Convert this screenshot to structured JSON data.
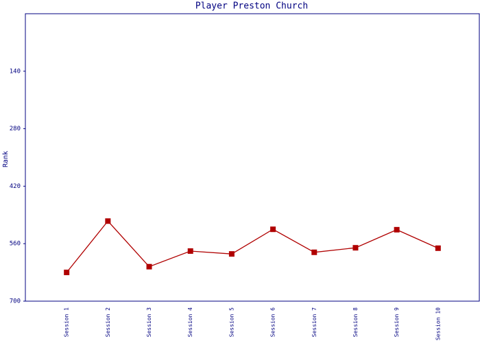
{
  "chart_data": {
    "type": "line",
    "title": "Player Preston Church",
    "y_label": "Rank",
    "categories": [
      "Session 1",
      "Session 2",
      "Session 3",
      "Session 4",
      "Session 5",
      "Session 6",
      "Session 7",
      "Session 8",
      "Session 9",
      "Session 10"
    ],
    "values": [
      630,
      505,
      616,
      578,
      585,
      525,
      581,
      570,
      526,
      571
    ],
    "color": "#b00000",
    "ylim": [
      0,
      700
    ],
    "y_inverted": true,
    "yticks": [
      140,
      280,
      420,
      560,
      700
    ]
  }
}
